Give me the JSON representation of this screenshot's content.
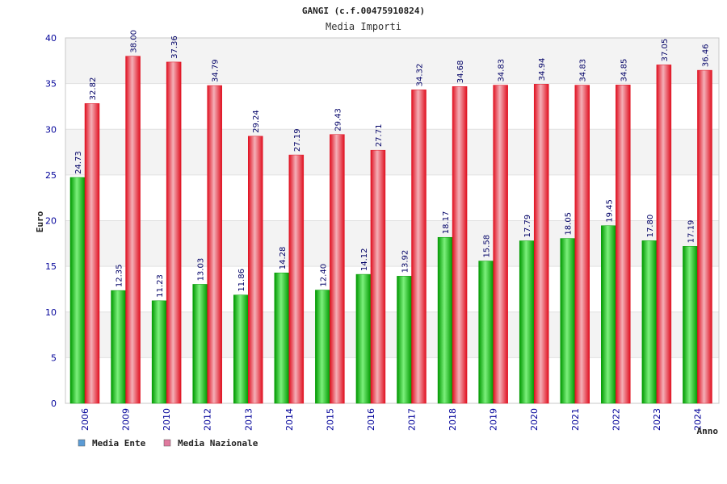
{
  "chart_data": {
    "type": "bar",
    "title": "GANGI (c.f.00475910824)",
    "subtitle": "Media Importi",
    "xlabel": "Anno",
    "ylabel": "Euro",
    "ylim": [
      0,
      40
    ],
    "yticks": [
      "0",
      "5",
      "10",
      "15",
      "20",
      "25",
      "30",
      "35",
      "40"
    ],
    "grid": true,
    "legend_position": "bottom-left",
    "categories": [
      "2006",
      "2009",
      "2010",
      "2012",
      "2013",
      "2014",
      "2015",
      "2016",
      "2017",
      "2018",
      "2019",
      "2020",
      "2021",
      "2022",
      "2023",
      "2024"
    ],
    "series": [
      {
        "name": "Media Ente",
        "values": [
          24.73,
          12.35,
          11.23,
          13.03,
          11.86,
          14.28,
          12.4,
          14.12,
          13.92,
          18.17,
          15.58,
          17.79,
          18.05,
          19.45,
          17.8,
          17.19
        ],
        "labels": [
          "24.73",
          "12.35",
          "11.23",
          "13.03",
          "11.86",
          "14.28",
          "12.40",
          "14.12",
          "13.92",
          "18.17",
          "15.58",
          "17.79",
          "18.05",
          "19.45",
          "17.80",
          "17.19"
        ]
      },
      {
        "name": "Media Nazionale",
        "values": [
          32.82,
          38.0,
          37.36,
          34.79,
          29.24,
          27.19,
          29.43,
          27.71,
          34.32,
          34.68,
          34.83,
          34.94,
          34.83,
          34.85,
          37.05,
          36.46
        ],
        "labels": [
          "32.82",
          "38.00",
          "37.36",
          "34.79",
          "29.24",
          "27.19",
          "29.43",
          "27.71",
          "34.32",
          "34.68",
          "34.83",
          "34.94",
          "34.83",
          "34.85",
          "37.05",
          "36.46"
        ]
      }
    ]
  },
  "legend": [
    {
      "label": "Media Ente",
      "swatch_color": "#5b9bd5"
    },
    {
      "label": "Media Nazionale",
      "swatch_color": "#e07a9e"
    }
  ],
  "colors": {
    "ente_light": "#7cf07c",
    "ente_dark": "#009900",
    "naz_light": "#f4b0b8",
    "naz_dark": "#e01020",
    "label": "#000066",
    "tick": "#000099",
    "band": "#f3f3f3"
  }
}
